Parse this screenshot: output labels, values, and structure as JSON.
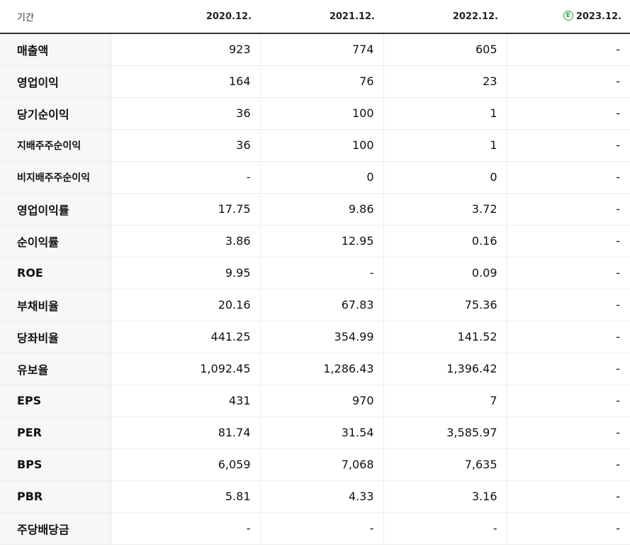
{
  "header": {
    "label": "기간",
    "periods": [
      "2020.12.",
      "2021.12.",
      "2022.12.",
      "2023.12."
    ],
    "estimate_badge": "E",
    "accent_color": "#2ea043"
  },
  "rows": [
    {
      "label": "매출액",
      "values": [
        "923",
        "774",
        "605",
        "-"
      ]
    },
    {
      "label": "영업이익",
      "values": [
        "164",
        "76",
        "23",
        "-"
      ]
    },
    {
      "label": "당기순이익",
      "values": [
        "36",
        "100",
        "1",
        "-"
      ]
    },
    {
      "label": "지배주주순이익",
      "values": [
        "36",
        "100",
        "1",
        "-"
      ]
    },
    {
      "label": "비지배주주순이익",
      "values": [
        "-",
        "0",
        "0",
        "-"
      ]
    },
    {
      "label": "영업이익률",
      "values": [
        "17.75",
        "9.86",
        "3.72",
        "-"
      ]
    },
    {
      "label": "순이익률",
      "values": [
        "3.86",
        "12.95",
        "0.16",
        "-"
      ]
    },
    {
      "label": "ROE",
      "values": [
        "9.95",
        "-",
        "0.09",
        "-"
      ]
    },
    {
      "label": "부채비율",
      "values": [
        "20.16",
        "67.83",
        "75.36",
        "-"
      ]
    },
    {
      "label": "당좌비율",
      "values": [
        "441.25",
        "354.99",
        "141.52",
        "-"
      ]
    },
    {
      "label": "유보율",
      "values": [
        "1,092.45",
        "1,286.43",
        "1,396.42",
        "-"
      ]
    },
    {
      "label": "EPS",
      "values": [
        "431",
        "970",
        "7",
        "-"
      ]
    },
    {
      "label": "PER",
      "values": [
        "81.74",
        "31.54",
        "3,585.97",
        "-"
      ]
    },
    {
      "label": "BPS",
      "values": [
        "6,059",
        "7,068",
        "7,635",
        "-"
      ]
    },
    {
      "label": "PBR",
      "values": [
        "5.81",
        "4.33",
        "3.16",
        "-"
      ]
    },
    {
      "label": "주당배당금",
      "values": [
        "-",
        "-",
        "-",
        "-"
      ]
    }
  ]
}
